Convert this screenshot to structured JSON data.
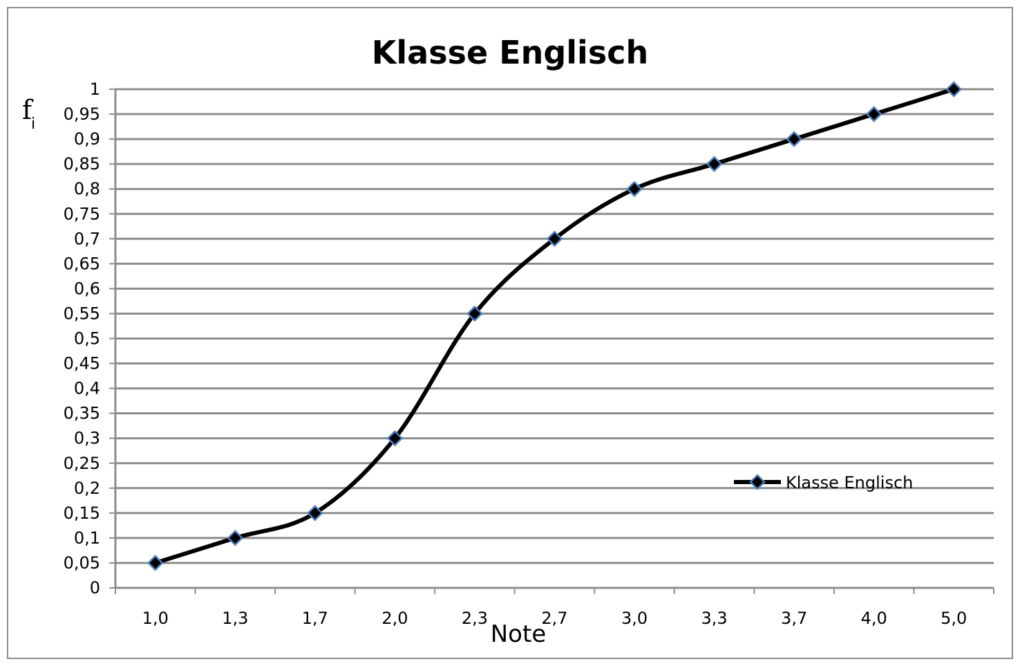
{
  "chart_data": {
    "type": "line",
    "title": "Klasse Englisch",
    "xlabel": "Note",
    "ylabel": "f",
    "ylabel_subscript": "i",
    "categories": [
      "1,0",
      "1,3",
      "1,7",
      "2,0",
      "2,3",
      "2,7",
      "3,0",
      "3,3",
      "3,7",
      "4,0",
      "5,0"
    ],
    "series": [
      {
        "name": "Klasse Englisch",
        "values": [
          0.05,
          0.1,
          0.15,
          0.3,
          0.55,
          0.7,
          0.8,
          0.85,
          0.9,
          0.95,
          1.0
        ],
        "line_color": "#000000",
        "marker": "diamond",
        "marker_fill": "#000000",
        "marker_stroke": "#4f81bd"
      }
    ],
    "ylim": [
      0,
      1
    ],
    "ytick_labels": [
      "0",
      "0,05",
      "0,1",
      "0,15",
      "0,2",
      "0,25",
      "0,3",
      "0,35",
      "0,4",
      "0,45",
      "0,5",
      "0,55",
      "0,6",
      "0,65",
      "0,7",
      "0,75",
      "0,8",
      "0,85",
      "0,9",
      "0,95",
      "1"
    ],
    "grid": true,
    "grid_color": "#8c8c8c",
    "legend_position": "lower-right inside plot",
    "smooth": true
  }
}
